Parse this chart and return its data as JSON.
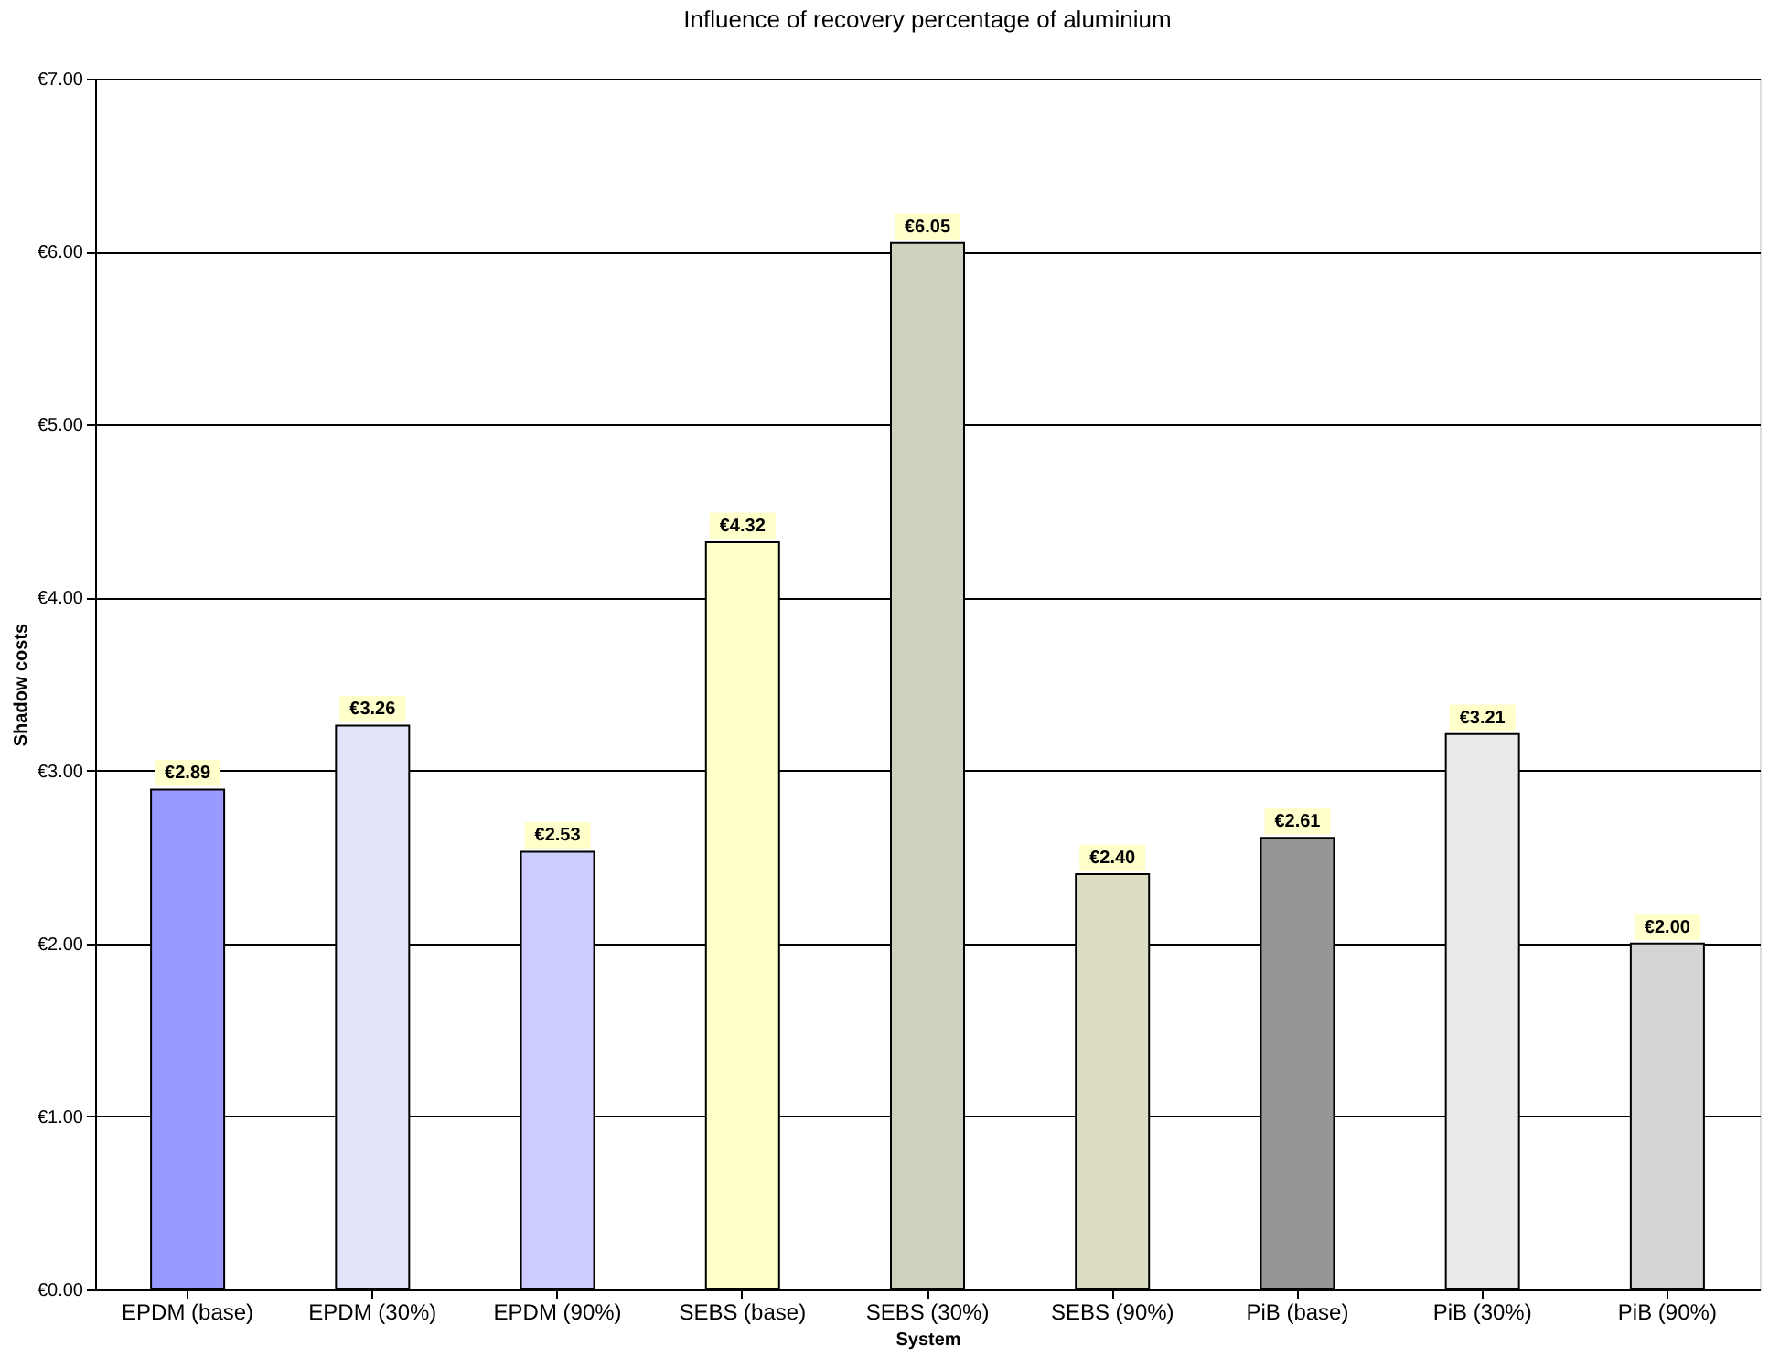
{
  "chart_data": {
    "type": "bar",
    "title": "Influence of recovery percentage of aluminium",
    "xlabel": "System",
    "ylabel": "Shadow costs",
    "categories": [
      "EPDM (base)",
      "EPDM (30%)",
      "EPDM (90%)",
      "SEBS (base)",
      "SEBS (30%)",
      "SEBS (90%)",
      "PiB (base)",
      "PiB (30%)",
      "PiB (90%)"
    ],
    "values": [
      2.89,
      3.26,
      2.53,
      4.32,
      6.05,
      2.4,
      2.61,
      3.21,
      2.0
    ],
    "colors": [
      "#9999ff",
      "#e3e3fb",
      "#ccccff",
      "#ffffcc",
      "#d0d0c0",
      "#ddddc4",
      "#969696",
      "#eaeaea",
      "#d4d4d4"
    ],
    "value_labels": [
      "€2.89",
      "€3.26",
      "€2.53",
      "€4.32",
      "€6.05",
      "€2.40",
      "€2.61",
      "€3.21",
      "€2.00"
    ],
    "ylim": [
      0,
      7
    ],
    "yticks": [
      {
        "value": 0,
        "label": "€0.00"
      },
      {
        "value": 1,
        "label": "€1.00"
      },
      {
        "value": 2,
        "label": "€2.00"
      },
      {
        "value": 3,
        "label": "€3.00"
      },
      {
        "value": 4,
        "label": "€4.00"
      },
      {
        "value": 5,
        "label": "€5.00"
      },
      {
        "value": 6,
        "label": "€6.00"
      },
      {
        "value": 7,
        "label": "€7.00"
      }
    ],
    "grid": "y"
  }
}
